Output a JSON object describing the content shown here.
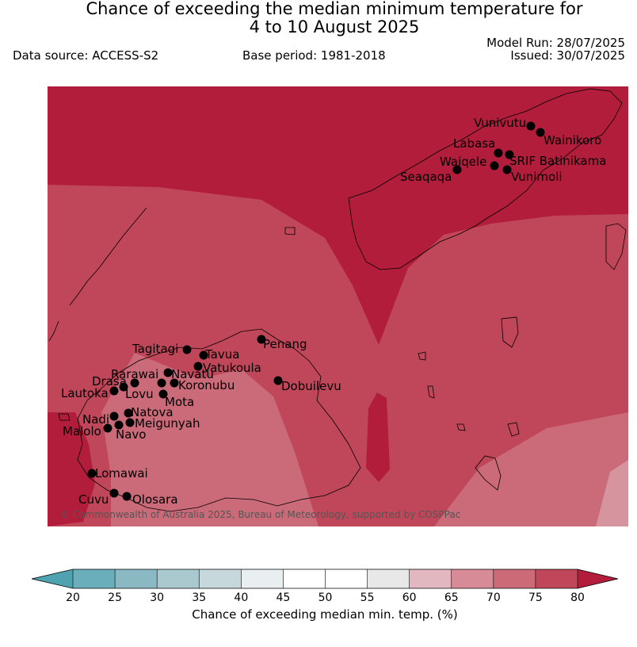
{
  "header": {
    "title_line1": "Chance of exceeding the median minimum temperature for",
    "title_line2": "4 to 10 August 2025",
    "data_source": "Data source: ACCESS-S2",
    "base_period": "Base period: 1981-2018",
    "model_run": "Model Run: 28/07/2025",
    "issued": "Issued: 30/07/2025"
  },
  "map": {
    "copyright": "© Commonwealth of Australia 2025, Bureau of Meteorology, supported by COSPPac",
    "colors": {
      "p75_80": "#b11d3b",
      "p70_75": "#c0475a",
      "p65_70": "#cb6a79",
      "p60_65": "#d6959e",
      "coast": "#000000"
    },
    "stations": [
      {
        "name": "Vunivutu"
      },
      {
        "name": "Wainikoro"
      },
      {
        "name": "Labasa"
      },
      {
        "name": "SRIF Batinikama"
      },
      {
        "name": "Waiqele"
      },
      {
        "name": "Seaqaqa"
      },
      {
        "name": "Vunimoli"
      },
      {
        "name": "Tagitagi"
      },
      {
        "name": "Tavua"
      },
      {
        "name": "Penang"
      },
      {
        "name": "Vatukoula"
      },
      {
        "name": "Rarawai"
      },
      {
        "name": "Navatu"
      },
      {
        "name": "Drasa"
      },
      {
        "name": "Koronubu"
      },
      {
        "name": "Dobuilevu"
      },
      {
        "name": "Lautoka"
      },
      {
        "name": "Lovu"
      },
      {
        "name": "Mota"
      },
      {
        "name": "Natova"
      },
      {
        "name": "Nadi"
      },
      {
        "name": "Meigunyah"
      },
      {
        "name": "Malolo"
      },
      {
        "name": "Navo"
      },
      {
        "name": "Lomawai"
      },
      {
        "name": "Cuvu"
      },
      {
        "name": "Olosara"
      }
    ]
  },
  "colorbar": {
    "label": "Chance of exceeding median min. temp. (%)",
    "ticks": [
      "20",
      "25",
      "30",
      "35",
      "40",
      "45",
      "50",
      "55",
      "60",
      "65",
      "70",
      "75",
      "80"
    ],
    "colors": [
      "#6aaebb",
      "#8ab9c3",
      "#a9c9cf",
      "#c6d8dc",
      "#e9eff1",
      "#ffffff",
      "#ffffff",
      "#e8e8e8",
      "#e2b7bf",
      "#d68b96",
      "#cc6a77",
      "#c0475a"
    ],
    "under_color": "#4fa3b0",
    "over_color": "#b11d3b"
  }
}
